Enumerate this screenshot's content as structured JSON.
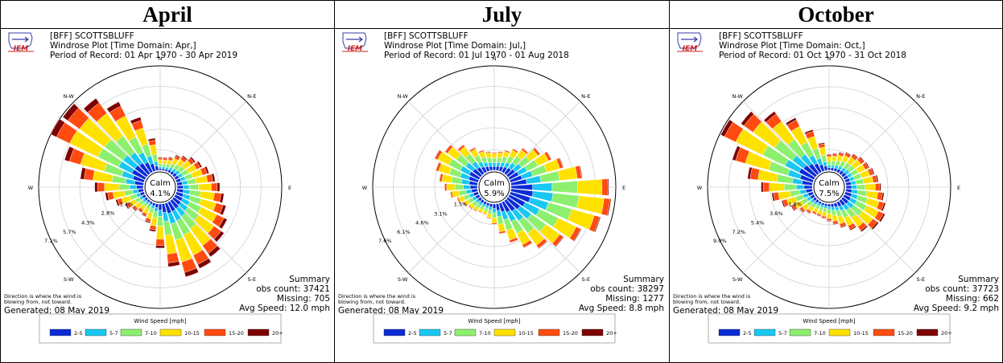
{
  "months": [
    "April",
    "July",
    "October"
  ],
  "charts": [
    {
      "station": "[BFF] SCOTTSBLUFF",
      "plot_title": "Windrose Plot [Time Domain: Apr,]",
      "period": "Period of Record: 01 Apr 1970 - 30 Apr 2019",
      "calm_label": "Calm",
      "calm_value": "4.1%",
      "ring_labels": [
        "1.4%",
        "2.8%",
        "4.3%",
        "5.7%",
        "7.1%"
      ],
      "summary": [
        "Summary",
        "obs count: 37421",
        "Missing: 705",
        "Avg Speed: 12.0 mph"
      ],
      "note": [
        "Direction is where the wind is",
        "blowing from, not toward."
      ],
      "generated": "Generated: 08 May 2019"
    },
    {
      "station": "[BFF] SCOTTSBLUFF",
      "plot_title": "Windrose Plot [Time Domain: Jul,]",
      "period": "Period of Record: 01 Jul 1970 - 01 Aug 2018",
      "calm_label": "Calm",
      "calm_value": "5.9%",
      "ring_labels": [
        "1.5%",
        "3.1%",
        "4.6%",
        "6.1%",
        "7.6%"
      ],
      "summary": [
        "Summary",
        "obs count: 38297",
        "Missing: 1277",
        "Avg Speed: 8.8 mph"
      ],
      "note": [
        "Direction is where the wind is",
        "blowing from, not toward."
      ],
      "generated": "Generated: 08 May 2019"
    },
    {
      "station": "[BFF] SCOTTSBLUFF",
      "plot_title": "Windrose Plot [Time Domain: Oct,]",
      "period": "Period of Record: 01 Oct 1970 - 31 Oct 2018",
      "calm_label": "Calm",
      "calm_value": "7.5%",
      "ring_labels": [
        "1.8%",
        "3.6%",
        "5.4%",
        "7.2%",
        "9.0%"
      ],
      "summary": [
        "Summary",
        "obs count: 37723",
        "Missing: 662",
        "Avg Speed: 9.2 mph"
      ],
      "note": [
        "Direction is where the wind is",
        "blowing from, not toward."
      ],
      "generated": "Generated: 08 May 2019"
    }
  ],
  "compass": [
    "N",
    "N-E",
    "E",
    "S-E",
    "S",
    "S-W",
    "W",
    "N-W"
  ],
  "logo_text": "IEM",
  "legend": {
    "title": "Wind Speed [mph]",
    "bins": [
      "2-5",
      "5-7",
      "7-10",
      "10-15",
      "15-20",
      "20+"
    ],
    "colors": [
      "#0a2bd6",
      "#18c8f2",
      "#8cf06e",
      "#ffe100",
      "#ff4a10",
      "#7e0000"
    ]
  },
  "chart_data": [
    {
      "type": "windrose",
      "title": "April",
      "calm_pct": 4.1,
      "rlim_pct": [
        0,
        7.1
      ],
      "ring_ticks_pct": [
        1.4,
        2.8,
        4.3,
        5.7,
        7.1
      ],
      "directions_deg": [
        0,
        10,
        20,
        30,
        40,
        50,
        60,
        70,
        80,
        90,
        100,
        110,
        120,
        130,
        140,
        150,
        160,
        170,
        180,
        190,
        200,
        210,
        220,
        230,
        240,
        250,
        260,
        270,
        280,
        290,
        300,
        310,
        320,
        330,
        340,
        350
      ],
      "bins": [
        "2-5",
        "5-7",
        "7-10",
        "10-15",
        "15-20",
        "20+"
      ],
      "totals_pct": [
        0.9,
        0.9,
        1.0,
        1.3,
        1.5,
        1.8,
        2.0,
        2.3,
        2.6,
        2.9,
        3.2,
        3.5,
        3.9,
        4.2,
        4.7,
        5.0,
        5.2,
        4.3,
        3.0,
        1.9,
        1.4,
        1.1,
        1.0,
        1.2,
        1.5,
        2.0,
        2.6,
        3.3,
        4.3,
        5.6,
        7.1,
        7.0,
        6.3,
        5.3,
        3.8,
        2.2
      ],
      "mix": [
        0.14,
        0.14,
        0.22,
        0.3,
        0.14,
        0.06
      ]
    },
    {
      "type": "windrose",
      "title": "July",
      "calm_pct": 5.9,
      "rlim_pct": [
        0,
        7.6
      ],
      "ring_ticks_pct": [
        1.5,
        3.1,
        4.6,
        6.1,
        7.6
      ],
      "directions_deg": [
        0,
        10,
        20,
        30,
        40,
        50,
        60,
        70,
        80,
        90,
        100,
        110,
        120,
        130,
        140,
        150,
        160,
        170,
        180,
        190,
        200,
        210,
        220,
        230,
        240,
        250,
        260,
        270,
        280,
        290,
        300,
        310,
        320,
        330,
        340,
        350
      ],
      "bins": [
        "2-5",
        "5-7",
        "7-10",
        "10-15",
        "15-20",
        "20+"
      ],
      "totals_pct": [
        1.3,
        1.4,
        1.6,
        1.9,
        2.3,
        2.9,
        3.4,
        4.0,
        5.2,
        7.1,
        7.3,
        6.8,
        5.8,
        5.0,
        4.3,
        3.7,
        3.0,
        2.2,
        1.5,
        1.1,
        0.9,
        0.9,
        1.0,
        1.1,
        1.3,
        1.6,
        2.0,
        2.4,
        2.8,
        3.2,
        3.6,
        3.2,
        2.6,
        2.0,
        1.6,
        1.4
      ],
      "mix": [
        0.22,
        0.2,
        0.26,
        0.25,
        0.06,
        0.01
      ]
    },
    {
      "type": "windrose",
      "title": "October",
      "calm_pct": 7.5,
      "rlim_pct": [
        0,
        9.0
      ],
      "ring_ticks_pct": [
        1.8,
        3.6,
        5.4,
        7.2,
        9.0
      ],
      "directions_deg": [
        0,
        10,
        20,
        30,
        40,
        50,
        60,
        70,
        80,
        90,
        100,
        110,
        120,
        130,
        140,
        150,
        160,
        170,
        180,
        190,
        200,
        210,
        220,
        230,
        240,
        250,
        260,
        270,
        280,
        290,
        300,
        310,
        320,
        330,
        340,
        350
      ],
      "bins": [
        "2-5",
        "5-7",
        "7-10",
        "10-15",
        "15-20",
        "20+"
      ],
      "totals_pct": [
        1.4,
        1.5,
        1.7,
        1.9,
        2.1,
        2.3,
        2.4,
        2.6,
        2.8,
        3.0,
        3.3,
        3.6,
        3.9,
        3.8,
        3.3,
        2.7,
        2.2,
        1.8,
        1.5,
        1.3,
        1.2,
        1.2,
        1.4,
        1.7,
        2.2,
        2.8,
        3.5,
        4.4,
        5.6,
        7.2,
        8.9,
        7.9,
        6.6,
        5.2,
        3.7,
        2.4
      ],
      "mix": [
        0.16,
        0.15,
        0.24,
        0.29,
        0.12,
        0.04
      ]
    }
  ]
}
